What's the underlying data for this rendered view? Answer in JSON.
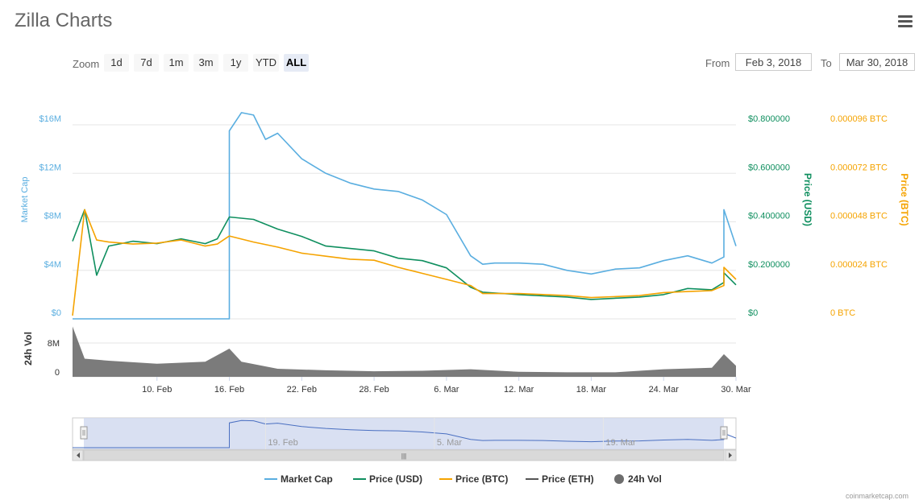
{
  "title": "Zilla Charts",
  "menu_icon": "hamburger-menu-icon",
  "zoom": {
    "label": "Zoom",
    "buttons": [
      "1d",
      "7d",
      "1m",
      "3m",
      "1y",
      "YTD",
      "ALL"
    ],
    "active": "ALL"
  },
  "range": {
    "from_label": "From",
    "from_value": "Feb 3, 2018",
    "to_label": "To",
    "to_value": "Mar 30, 2018"
  },
  "credit": "coinmarketcap.com",
  "colors": {
    "market_cap": "#5aaee0",
    "price_usd": "#0f8f5f",
    "price_btc": "#f5a300",
    "price_eth": "#555555",
    "volume": "#6d6d6d",
    "navigator_fill": "#cfd8ef"
  },
  "chart_data": {
    "type": "line",
    "x_axis": {
      "ticks": [
        "10. Feb",
        "16. Feb",
        "22. Feb",
        "28. Feb",
        "6. Mar",
        "12. Mar",
        "18. Mar",
        "24. Mar",
        "30. Mar"
      ],
      "range": [
        "2018-02-03",
        "2018-03-30"
      ]
    },
    "y_axes": [
      {
        "id": "market_cap",
        "title": "Market Cap",
        "ticks": [
          "$0",
          "$4M",
          "$8M",
          "$12M",
          "$16M"
        ],
        "range": [
          0,
          16000000
        ]
      },
      {
        "id": "price_usd",
        "title": "Price (USD)",
        "ticks": [
          "$0",
          "$0.200000",
          "$0.400000",
          "$0.600000",
          "$0.800000"
        ],
        "range": [
          0,
          0.8
        ]
      },
      {
        "id": "price_btc",
        "title": "Price (BTC)",
        "ticks": [
          "0 BTC",
          "0.000024 BTC",
          "0.000048 BTC",
          "0.000072 BTC",
          "0.000096 BTC"
        ],
        "range": [
          0,
          9.6e-05
        ]
      },
      {
        "id": "volume",
        "title": "24h Vol",
        "ticks": [
          "0",
          "8M"
        ],
        "range": [
          0,
          8000000
        ]
      }
    ],
    "series": [
      {
        "name": "Market Cap",
        "axis": "market_cap",
        "x": [
          "2018-02-03",
          "2018-02-16",
          "2018-02-16",
          "2018-02-17",
          "2018-02-18",
          "2018-02-19",
          "2018-02-20",
          "2018-02-22",
          "2018-02-24",
          "2018-02-26",
          "2018-02-28",
          "2018-03-02",
          "2018-03-04",
          "2018-03-06",
          "2018-03-08",
          "2018-03-09",
          "2018-03-10",
          "2018-03-12",
          "2018-03-14",
          "2018-03-16",
          "2018-03-18",
          "2018-03-20",
          "2018-03-22",
          "2018-03-24",
          "2018-03-26",
          "2018-03-28",
          "2018-03-29",
          "2018-03-29",
          "2018-03-30"
        ],
        "y": [
          0,
          0,
          15500000,
          17000000,
          16800000,
          14800000,
          15300000,
          13200000,
          12000000,
          11200000,
          10700000,
          10500000,
          9800000,
          8600000,
          5200000,
          4500000,
          4600000,
          4600000,
          4500000,
          4000000,
          3700000,
          4100000,
          4200000,
          4800000,
          5200000,
          4600000,
          5100000,
          9000000,
          6000000
        ]
      },
      {
        "name": "Price (USD)",
        "axis": "price_usd",
        "x": [
          "2018-02-03",
          "2018-02-04",
          "2018-02-05",
          "2018-02-06",
          "2018-02-08",
          "2018-02-10",
          "2018-02-12",
          "2018-02-14",
          "2018-02-15",
          "2018-02-16",
          "2018-02-18",
          "2018-02-20",
          "2018-02-22",
          "2018-02-24",
          "2018-02-26",
          "2018-02-28",
          "2018-03-02",
          "2018-03-04",
          "2018-03-06",
          "2018-03-08",
          "2018-03-09",
          "2018-03-12",
          "2018-03-16",
          "2018-03-18",
          "2018-03-22",
          "2018-03-24",
          "2018-03-26",
          "2018-03-28",
          "2018-03-29",
          "2018-03-29",
          "2018-03-30"
        ],
        "y": [
          0.32,
          0.45,
          0.18,
          0.3,
          0.32,
          0.31,
          0.33,
          0.31,
          0.33,
          0.42,
          0.41,
          0.37,
          0.34,
          0.3,
          0.29,
          0.28,
          0.25,
          0.24,
          0.21,
          0.13,
          0.11,
          0.1,
          0.09,
          0.08,
          0.09,
          0.1,
          0.125,
          0.12,
          0.15,
          0.19,
          0.14
        ]
      },
      {
        "name": "Price (BTC)",
        "axis": "price_btc",
        "x": [
          "2018-02-03",
          "2018-02-04",
          "2018-02-05",
          "2018-02-06",
          "2018-02-08",
          "2018-02-10",
          "2018-02-12",
          "2018-02-14",
          "2018-02-15",
          "2018-02-16",
          "2018-02-18",
          "2018-02-20",
          "2018-02-22",
          "2018-02-24",
          "2018-02-26",
          "2018-02-28",
          "2018-03-02",
          "2018-03-04",
          "2018-03-06",
          "2018-03-08",
          "2018-03-09",
          "2018-03-12",
          "2018-03-16",
          "2018-03-18",
          "2018-03-22",
          "2018-03-24",
          "2018-03-26",
          "2018-03-28",
          "2018-03-29",
          "2018-03-29",
          "2018-03-30"
        ],
        "y": [
          1.6e-06,
          5.4e-05,
          3.9e-05,
          3.8e-05,
          3.7e-05,
          3.75e-05,
          3.9e-05,
          3.6e-05,
          3.7e-05,
          4.1e-05,
          3.8e-05,
          3.55e-05,
          3.25e-05,
          3.1e-05,
          2.95e-05,
          2.9e-05,
          2.55e-05,
          2.25e-05,
          1.95e-05,
          1.65e-05,
          1.25e-05,
          1.25e-05,
          1.15e-05,
          1.05e-05,
          1.15e-05,
          1.3e-05,
          1.35e-05,
          1.4e-05,
          1.65e-05,
          2.55e-05,
          1.95e-05
        ]
      },
      {
        "name": "Price (ETH)",
        "axis": "price_usd",
        "x": [],
        "y": []
      },
      {
        "name": "24h Vol",
        "axis": "volume",
        "type": "area",
        "x": [
          "2018-02-03",
          "2018-02-04",
          "2018-02-06",
          "2018-02-10",
          "2018-02-14",
          "2018-02-16",
          "2018-02-17",
          "2018-02-20",
          "2018-02-24",
          "2018-02-28",
          "2018-03-04",
          "2018-03-08",
          "2018-03-12",
          "2018-03-16",
          "2018-03-20",
          "2018-03-24",
          "2018-03-28",
          "2018-03-29",
          "2018-03-30"
        ],
        "y": [
          10000000,
          3600000,
          3200000,
          2600000,
          3000000,
          5600000,
          3000000,
          1600000,
          1300000,
          1100000,
          1200000,
          1500000,
          1000000,
          900000,
          900000,
          1500000,
          1800000,
          4500000,
          2200000
        ]
      }
    ],
    "legend": {
      "placement": "bottom-center",
      "items": [
        "Market Cap",
        "Price (USD)",
        "Price (BTC)",
        "Price (ETH)",
        "24h Vol"
      ]
    },
    "navigator": {
      "ticks": [
        "19. Feb",
        "5. Mar",
        "19. Mar"
      ],
      "scrollbar_grip": "|||"
    },
    "grid": true
  }
}
